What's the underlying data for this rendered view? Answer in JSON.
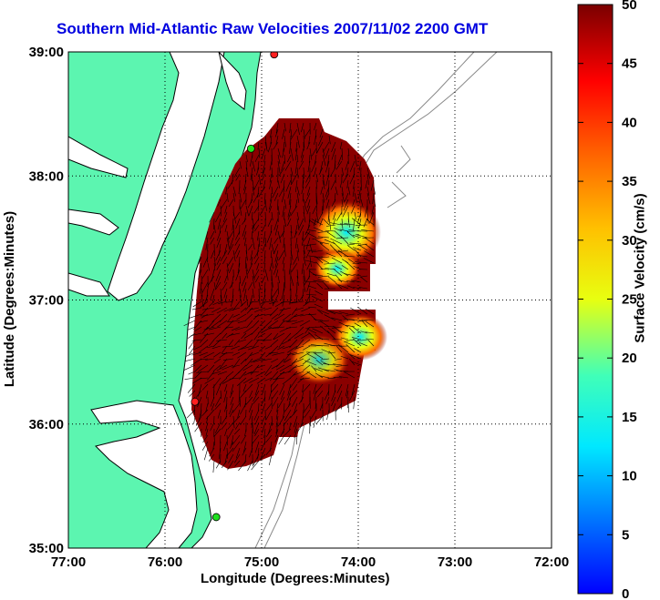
{
  "title": "Southern Mid-Atlantic Raw Velocities 2007/11/02 2200 GMT",
  "map": {
    "xlabel": "Longitude (Degrees:Minutes)",
    "ylabel": "Latitude (Degrees:Minutes)",
    "x_ticks": [
      "77:00",
      "76:00",
      "75:00",
      "74:00",
      "73:00",
      "72:00"
    ],
    "y_ticks": [
      "39:00",
      "38:00",
      "37:00",
      "36:00",
      "35:00"
    ],
    "lon_range": [
      -77,
      -72
    ],
    "lat_range": [
      35,
      39
    ],
    "grid": true,
    "land_color": "#5cf5b0",
    "water_color": "#ffffff"
  },
  "colorbar": {
    "label": "Surface Velocity (cm/s)",
    "ticks": [
      "0",
      "5",
      "10",
      "15",
      "20",
      "25",
      "30",
      "35",
      "40",
      "45",
      "50"
    ],
    "range": [
      0,
      50
    ],
    "colormap": "jet"
  },
  "stations": [
    {
      "lon": -74.87,
      "lat": 38.98,
      "color": "#ff2020"
    },
    {
      "lon": -75.11,
      "lat": 38.22,
      "color": "#20e020"
    },
    {
      "lon": -75.69,
      "lat": 36.18,
      "color": "#ff2020"
    },
    {
      "lon": -75.47,
      "lat": 35.25,
      "color": "#20e020"
    }
  ]
}
